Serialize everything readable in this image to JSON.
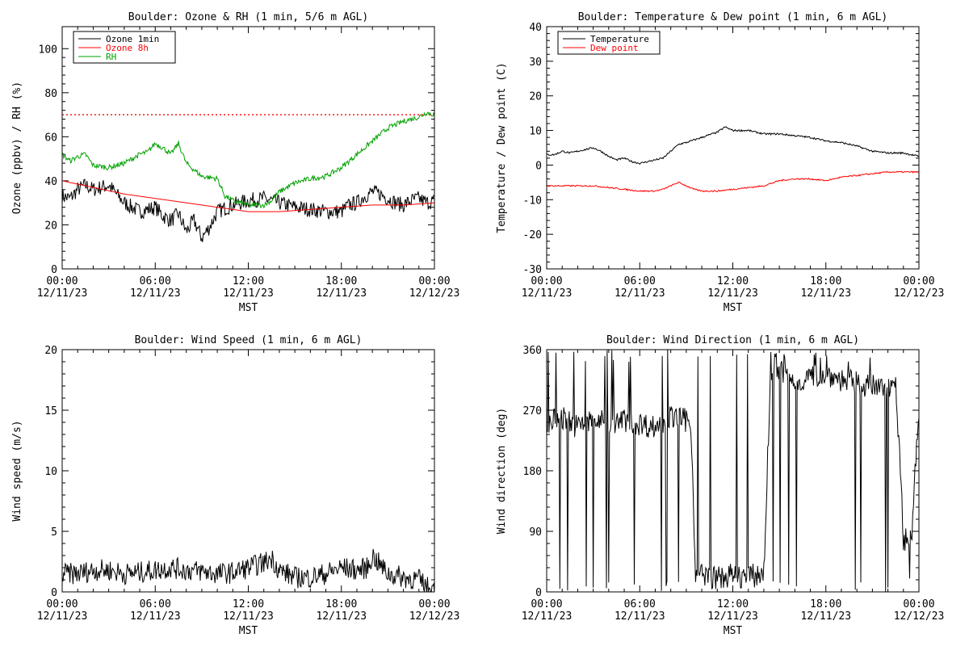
{
  "chart_data": [
    {
      "type": "line",
      "title": "Boulder: Ozone & RH (1 min, 5/6 m AGL)",
      "xlabel": "MST",
      "ylabel": "Ozone (ppbv) / RH (%)",
      "xlim": [
        0,
        24
      ],
      "ylim": [
        0,
        110
      ],
      "yticks": [
        0,
        20,
        40,
        60,
        80,
        100
      ],
      "xtick_times": [
        "00:00",
        "06:00",
        "12:00",
        "18:00",
        "00:00"
      ],
      "xtick_dates": [
        "12/11/23",
        "12/11/23",
        "12/11/23",
        "12/11/23",
        "12/12/23"
      ],
      "legend_position": "top-left",
      "reference_line": {
        "y": 70,
        "color": "#ff0000",
        "style": "dotted"
      },
      "series": [
        {
          "name": "Ozone 1min",
          "color": "#000000",
          "noise": 3.5,
          "x": [
            0,
            0.5,
            1,
            1.5,
            2,
            2.5,
            3,
            3.5,
            4,
            4.5,
            5,
            5.5,
            6,
            6.5,
            7,
            7.5,
            8,
            8.5,
            9,
            9.5,
            10,
            11,
            12,
            13,
            14,
            15,
            16,
            17,
            18,
            18.5,
            19,
            19.5,
            20,
            20.5,
            21,
            21.5,
            22,
            22.5,
            23,
            23.5,
            24
          ],
          "values": [
            33,
            32,
            36,
            38,
            36,
            37,
            38,
            34,
            30,
            28,
            26,
            27,
            28,
            24,
            22,
            25,
            17,
            22,
            14,
            19,
            26,
            29,
            31,
            32,
            30,
            28,
            27,
            26,
            26,
            29,
            30,
            33,
            35,
            34,
            32,
            30,
            29,
            31,
            32,
            30,
            31
          ]
        },
        {
          "name": "Ozone 8h",
          "color": "#ff0000",
          "noise": 0,
          "x": [
            0,
            2,
            4,
            6,
            8,
            10,
            11,
            12,
            14,
            16,
            18,
            20,
            22,
            24
          ],
          "values": [
            40,
            37,
            34,
            32,
            30,
            28,
            27,
            26,
            26,
            27,
            28,
            29,
            29,
            30
          ]
        },
        {
          "name": "RH",
          "color": "#00a000",
          "noise": 1.2,
          "x": [
            0,
            0.5,
            1,
            1.5,
            2,
            3,
            4,
            5,
            5.5,
            6,
            6.5,
            7,
            7.5,
            8,
            9,
            10,
            10.5,
            11,
            12,
            13,
            13.5,
            14,
            15,
            16,
            17,
            18,
            19,
            20,
            21,
            22,
            23,
            23.5,
            24
          ],
          "values": [
            52,
            49,
            51,
            52,
            47,
            46,
            48,
            52,
            53,
            57,
            55,
            52,
            57,
            48,
            42,
            41,
            33,
            31,
            29,
            29,
            31,
            35,
            39,
            41,
            42,
            46,
            52,
            58,
            64,
            67,
            69,
            71,
            70
          ]
        }
      ]
    },
    {
      "type": "line",
      "title": "Boulder: Temperature & Dew point (1 min, 6 m AGL)",
      "xlabel": "MST",
      "ylabel": "Temperature / Dew point (C)",
      "xlim": [
        0,
        24
      ],
      "ylim": [
        -30,
        40
      ],
      "yticks": [
        -30,
        -20,
        -10,
        0,
        10,
        20,
        30,
        40
      ],
      "xtick_times": [
        "00:00",
        "06:00",
        "12:00",
        "18:00",
        "00:00"
      ],
      "xtick_dates": [
        "12/11/23",
        "12/11/23",
        "12/11/23",
        "12/11/23",
        "12/12/23"
      ],
      "legend_position": "top-left",
      "series": [
        {
          "name": "Temperature",
          "color": "#000000",
          "noise": 0.25,
          "x": [
            0,
            0.5,
            1,
            1.5,
            2,
            2.5,
            3,
            3.5,
            4,
            4.5,
            5,
            5.5,
            6,
            6.5,
            7,
            7.5,
            8,
            8.5,
            9,
            10,
            11,
            11.5,
            12,
            13,
            14,
            15,
            16,
            17,
            18,
            19,
            20,
            21,
            22,
            23,
            23.5,
            24
          ],
          "values": [
            3,
            3,
            4,
            3.5,
            4,
            4.5,
            5,
            4,
            2.5,
            1.5,
            2,
            1,
            0.5,
            1,
            1.5,
            2,
            4,
            6,
            6.5,
            8,
            9.5,
            11,
            10,
            10,
            9,
            9,
            8.5,
            8,
            7,
            6.5,
            5.5,
            4,
            3.5,
            3.5,
            3,
            2.5
          ]
        },
        {
          "name": "Dew point",
          "color": "#ff0000",
          "noise": 0.2,
          "x": [
            0,
            1,
            2,
            3,
            4,
            5,
            6,
            7,
            7.5,
            8,
            8.5,
            9,
            9.5,
            10,
            11,
            12,
            13,
            14,
            15,
            16,
            17,
            18,
            19,
            20,
            21,
            22,
            23,
            24
          ],
          "values": [
            -6,
            -6,
            -6,
            -6,
            -6.5,
            -7,
            -7.5,
            -7.5,
            -7,
            -6,
            -5,
            -6,
            -7,
            -7.5,
            -7.5,
            -7,
            -6.5,
            -6,
            -4.5,
            -4,
            -4,
            -4.5,
            -3.5,
            -3,
            -2.5,
            -2,
            -2,
            -2
          ]
        }
      ]
    },
    {
      "type": "line",
      "title": "Boulder: Wind Speed (1 min, 6 m AGL)",
      "xlabel": "MST",
      "ylabel": "Wind speed (m/s)",
      "xlim": [
        0,
        24
      ],
      "ylim": [
        0,
        20
      ],
      "yticks": [
        0,
        5,
        10,
        15,
        20
      ],
      "xtick_times": [
        "00:00",
        "06:00",
        "12:00",
        "18:00",
        "00:00"
      ],
      "xtick_dates": [
        "12/11/23",
        "12/11/23",
        "12/11/23",
        "12/11/23",
        "12/12/23"
      ],
      "series": [
        {
          "color": "#000000",
          "noise": 0.9,
          "x": [
            0,
            1,
            2,
            3,
            4,
            5,
            6,
            7,
            8,
            9,
            10,
            11,
            12,
            13,
            13.5,
            14,
            15,
            16,
            17,
            18,
            19,
            19.7,
            20,
            20.5,
            21,
            22,
            23,
            23.5,
            24
          ],
          "values": [
            1.5,
            1.5,
            1.8,
            1.8,
            1.5,
            1.6,
            1.8,
            2,
            1.8,
            1.7,
            1.5,
            1.6,
            2,
            2.4,
            2.8,
            1.8,
            1.2,
            1.2,
            1.5,
            2,
            1.8,
            2,
            3,
            2.2,
            1.5,
            1.2,
            1,
            0.4,
            0.2
          ]
        }
      ]
    },
    {
      "type": "line",
      "title": "Boulder: Wind Direction (1 min, 6 m AGL)",
      "xlabel": "MST",
      "ylabel": "Wind direction (deg)",
      "xlim": [
        0,
        24
      ],
      "ylim": [
        0,
        360
      ],
      "yticks": [
        0,
        90,
        180,
        270,
        360
      ],
      "xtick_times": [
        "00:00",
        "06:00",
        "12:00",
        "18:00",
        "00:00"
      ],
      "xtick_dates": [
        "12/11/23",
        "12/11/23",
        "12/11/23",
        "12/11/23",
        "12/12/23"
      ],
      "series": [
        {
          "color": "#000000",
          "noise": 18,
          "x": [
            0,
            1,
            2,
            3,
            4,
            5,
            6,
            7,
            8,
            9,
            9.3,
            9.6,
            10,
            11,
            12,
            13,
            14,
            14.4,
            14.6,
            15,
            16,
            17,
            18,
            19,
            20,
            21,
            22,
            22.5,
            23,
            23.5,
            24
          ],
          "values": [
            250,
            260,
            245,
            255,
            250,
            255,
            250,
            245,
            260,
            255,
            250,
            30,
            25,
            20,
            25,
            22,
            28,
            300,
            340,
            330,
            310,
            320,
            325,
            315,
            310,
            305,
            300,
            320,
            80,
            75,
            270
          ]
        }
      ]
    }
  ]
}
